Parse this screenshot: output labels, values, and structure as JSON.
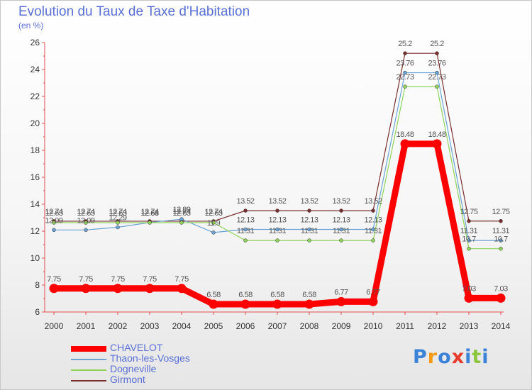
{
  "chart_data": {
    "type": "line",
    "title": "Evolution du Taux de Taxe d'Habitation",
    "subtitle": "(en %)",
    "xlabel": "",
    "ylabel": "(en %)",
    "ylim": [
      6,
      26
    ],
    "yticks": [
      6,
      8,
      10,
      12,
      14,
      16,
      18,
      20,
      22,
      24,
      26
    ],
    "categories": [
      "2000",
      "2001",
      "2002",
      "2003",
      "2004",
      "2005",
      "2006",
      "2007",
      "2008",
      "2009",
      "2010",
      "2011",
      "2012",
      "2013",
      "2014"
    ],
    "series": [
      {
        "name": "CHAVELOT",
        "color": "#ff0000",
        "values": [
          7.75,
          7.75,
          7.75,
          7.75,
          7.75,
          6.58,
          6.58,
          6.58,
          6.58,
          6.77,
          6.77,
          18.48,
          18.48,
          7.03,
          7.03
        ],
        "labels": [
          "7.75",
          "7.75",
          "7.75",
          "7.75",
          "7.75",
          "6.58",
          "6.58",
          "6.58",
          "6.58",
          "6.77",
          "6.77",
          "18.48",
          "18.48",
          "7.03",
          "7.03"
        ]
      },
      {
        "name": "Thaon-les-Vosges",
        "color": "#6aa3d6",
        "values": [
          12.09,
          12.09,
          12.29,
          12.64,
          12.89,
          11.9,
          12.13,
          12.13,
          12.13,
          12.13,
          12.13,
          23.76,
          23.76,
          11.31,
          11.31
        ],
        "labels": [
          "12.09",
          "12.09",
          "12.29",
          "12.64",
          "12.89",
          "11.9",
          "12.13",
          "12.13",
          "12.13",
          "12.13",
          "12.13",
          "23.76",
          "23.76",
          "11.31",
          "11.31"
        ]
      },
      {
        "name": "Dogneville",
        "color": "#8fd35a",
        "values": [
          12.63,
          12.63,
          12.63,
          12.63,
          12.63,
          12.63,
          11.31,
          11.31,
          11.31,
          11.31,
          11.31,
          22.73,
          22.73,
          10.7,
          10.7
        ],
        "labels": [
          "12.63",
          "12.63",
          "12.63",
          "12.63",
          "12.63",
          "12.63",
          "11.31",
          "11.31",
          "11.31",
          "11.31",
          "11.31",
          "22.73",
          "22.73",
          "10.7",
          "10.7"
        ]
      },
      {
        "name": "Girmont",
        "color": "#7a2e2e",
        "values": [
          12.74,
          12.74,
          12.74,
          12.74,
          12.74,
          12.74,
          13.52,
          13.52,
          13.52,
          13.52,
          13.52,
          25.2,
          25.2,
          12.75,
          12.75
        ],
        "labels": [
          "12.74",
          "12.74",
          "12.74",
          "12.74",
          "12.74",
          "12.74",
          "13.52",
          "13.52",
          "13.52",
          "13.52",
          "13.52",
          "25.2",
          "25.2",
          "12.75",
          "12.75"
        ]
      }
    ],
    "grid": false,
    "legend_position": "bottom-left"
  },
  "branding": {
    "logo_letters": [
      "P",
      "r",
      "o",
      "x",
      "i",
      "t",
      "i"
    ],
    "logo_colors": [
      "#3a83d8",
      "#f39a16",
      "#3a83d8",
      "#e63a2c",
      "#3a83d8",
      "#8cc63e",
      "#3a83d8"
    ]
  }
}
